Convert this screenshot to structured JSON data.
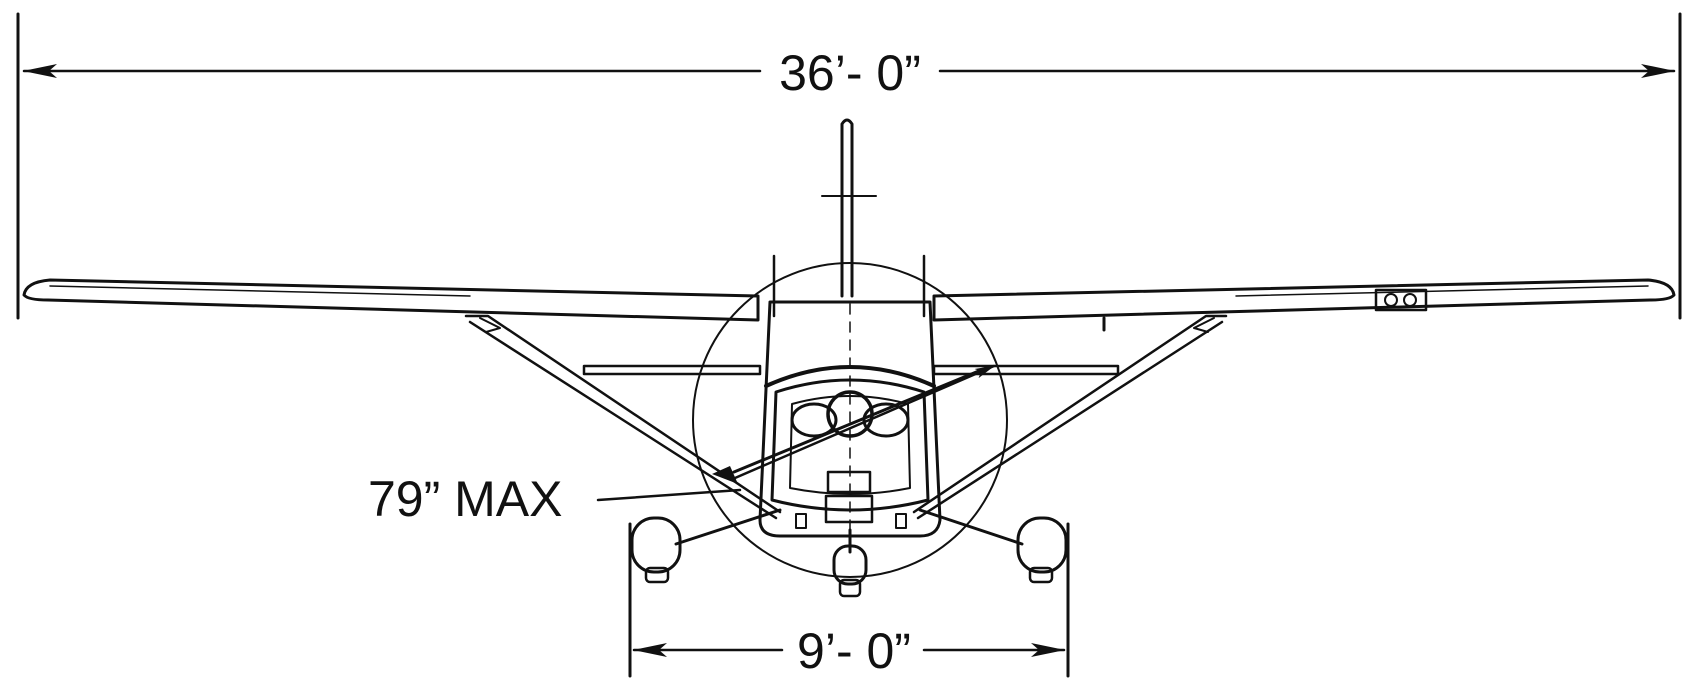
{
  "diagram": {
    "type": "aircraft-front-view-dimensions",
    "line_color": "#111111",
    "background": "#ffffff",
    "dimensions": {
      "wingspan": {
        "label": "36’- 0”"
      },
      "wheel_track": {
        "label": "9’- 0”"
      },
      "propeller_diameter": {
        "label": "79” MAX"
      }
    }
  }
}
